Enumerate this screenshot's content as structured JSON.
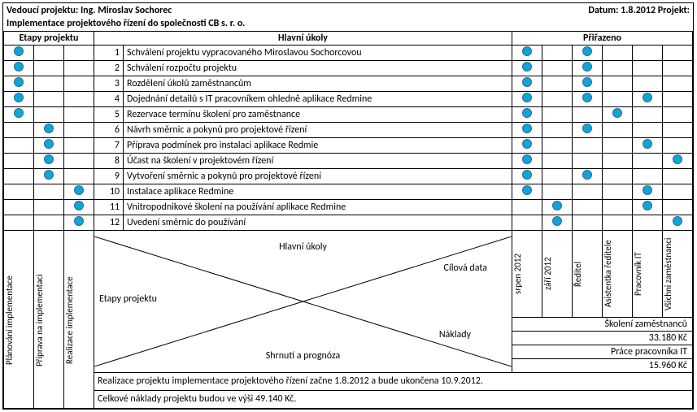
{
  "header": {
    "leader_label": "Vedoucí projektu: Ing. Miroslav Sochorec",
    "date_label": "Datum: 1.8.2012 Projekt:",
    "project_title": "Implementace projektového řízení do společnosti CB s. r. o."
  },
  "columns": {
    "stages_header": "Etapy projektu",
    "tasks_header": "Hlavní úkoly",
    "assigned_header": "Přiřazeno"
  },
  "dot_style": {
    "fill": "#13a3d8",
    "border": "#2b6e8f"
  },
  "rows": [
    {
      "num": "1",
      "task": "Schválení projektu vypracovaného Miroslavou Sochorcovou",
      "stages": [
        true,
        false,
        false
      ],
      "assign": [
        true,
        false,
        true,
        false,
        false,
        false
      ]
    },
    {
      "num": "2",
      "task": "Schválení rozpočtu projektu",
      "stages": [
        true,
        false,
        false
      ],
      "assign": [
        true,
        false,
        true,
        false,
        false,
        false
      ]
    },
    {
      "num": "3",
      "task": "Rozdělení úkolů zaměstnancům",
      "stages": [
        true,
        false,
        false
      ],
      "assign": [
        true,
        false,
        true,
        false,
        false,
        false
      ]
    },
    {
      "num": "4",
      "task": "Dojednání detailů s IT pracovníkem ohledně aplikace Redmine",
      "stages": [
        true,
        false,
        false
      ],
      "assign": [
        true,
        false,
        true,
        false,
        true,
        false
      ]
    },
    {
      "num": "5",
      "task": "Rezervace termínu školení pro zaměstnance",
      "stages": [
        true,
        false,
        false
      ],
      "assign": [
        true,
        false,
        false,
        true,
        false,
        false
      ]
    },
    {
      "num": "6",
      "task": "Návrh směrnic a pokynů pro projektové řízení",
      "stages": [
        false,
        true,
        false
      ],
      "assign": [
        true,
        false,
        true,
        false,
        false,
        false
      ]
    },
    {
      "num": "7",
      "task": "Příprava podmínek pro instalaci aplikace Redmie",
      "stages": [
        false,
        true,
        false
      ],
      "assign": [
        true,
        false,
        false,
        false,
        true,
        false
      ]
    },
    {
      "num": "8",
      "task": "Účast na školení v projektovém řízení",
      "stages": [
        false,
        true,
        false
      ],
      "assign": [
        true,
        false,
        false,
        false,
        false,
        true
      ]
    },
    {
      "num": "9",
      "task": "Vytvoření směrnic a pokynů pro projektové řízení",
      "stages": [
        false,
        true,
        false
      ],
      "assign": [
        true,
        false,
        true,
        false,
        false,
        false
      ]
    },
    {
      "num": "10",
      "task": "Instalace aplikace Redmine",
      "stages": [
        false,
        false,
        true
      ],
      "assign": [
        true,
        false,
        false,
        false,
        true,
        false
      ]
    },
    {
      "num": "11",
      "task": "Vnitropodnikové školení na používání aplikace Redmine",
      "stages": [
        false,
        false,
        true
      ],
      "assign": [
        false,
        true,
        false,
        false,
        true,
        false
      ]
    },
    {
      "num": "12",
      "task": "Uvedení směrnic do používání",
      "stages": [
        false,
        false,
        true
      ],
      "assign": [
        false,
        true,
        false,
        false,
        false,
        true
      ]
    }
  ],
  "stage_labels": [
    "Plánování implementace",
    "Příprava na implementaci",
    "Realizace implementace"
  ],
  "assign_labels": [
    "srpen 2012",
    "září 2012",
    "Ředitel",
    "Asistentka ředitele",
    "Pracovník IT",
    "Všichni zaměstnanci"
  ],
  "diagram": {
    "center_top": "Hlavní úkoly",
    "left": "Etapy projektu",
    "right_top": "Cílová data",
    "right_bottom": "Náklady",
    "center_bottom": "Shrnutí a prognóza"
  },
  "costs": [
    {
      "label": "Školení zaměstnanců",
      "value": "33.180 Kč"
    },
    {
      "label": "Práce pracovníka IT",
      "value": "15.960 Kč"
    }
  ],
  "summary": {
    "line1": "Realizace projektu implementace projektového řízení začne 1.8.2012 a bude ukončena 10.9.2012.",
    "line2": "Celkové náklady projektu budou ve výši 49.140 Kč."
  }
}
